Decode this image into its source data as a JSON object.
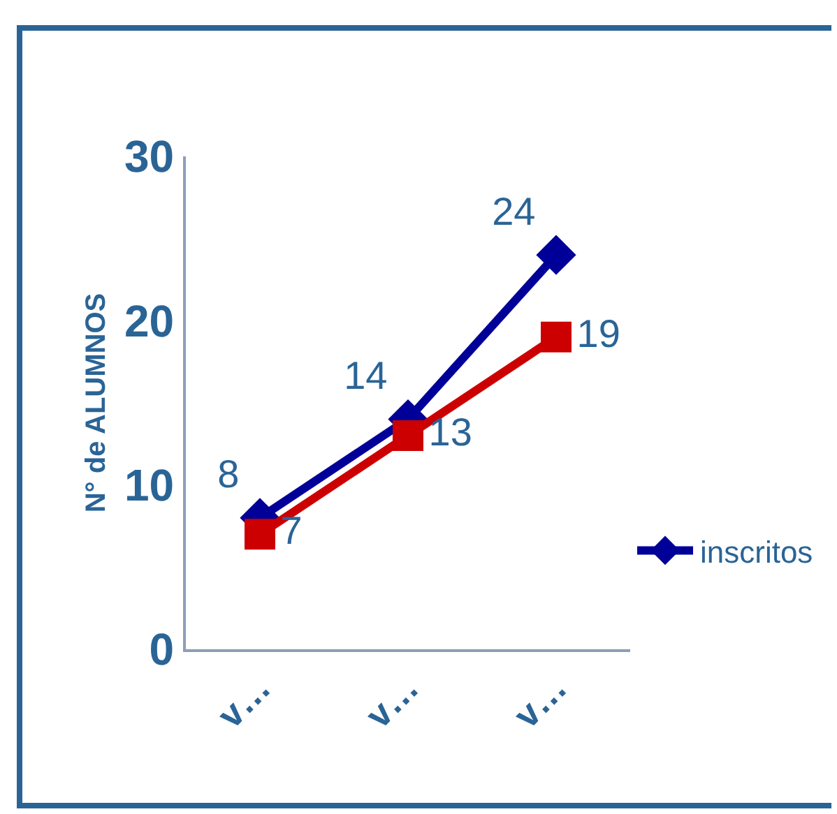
{
  "chart_data": {
    "type": "line",
    "ylabel": "N° de ALUMNOS",
    "categories": [
      "v…",
      "v…",
      "v…"
    ],
    "series": [
      {
        "name": "inscritos",
        "color": "#000099",
        "values": [
          8,
          14,
          24
        ],
        "marker": "diamond"
      },
      {
        "color": "#cc0000",
        "values": [
          7,
          13,
          19
        ],
        "marker": "square"
      }
    ],
    "ylim": [
      0,
      30
    ],
    "yticks": [
      0,
      10,
      20,
      30
    ],
    "grid": false,
    "legend": "right",
    "data_labels": true
  }
}
